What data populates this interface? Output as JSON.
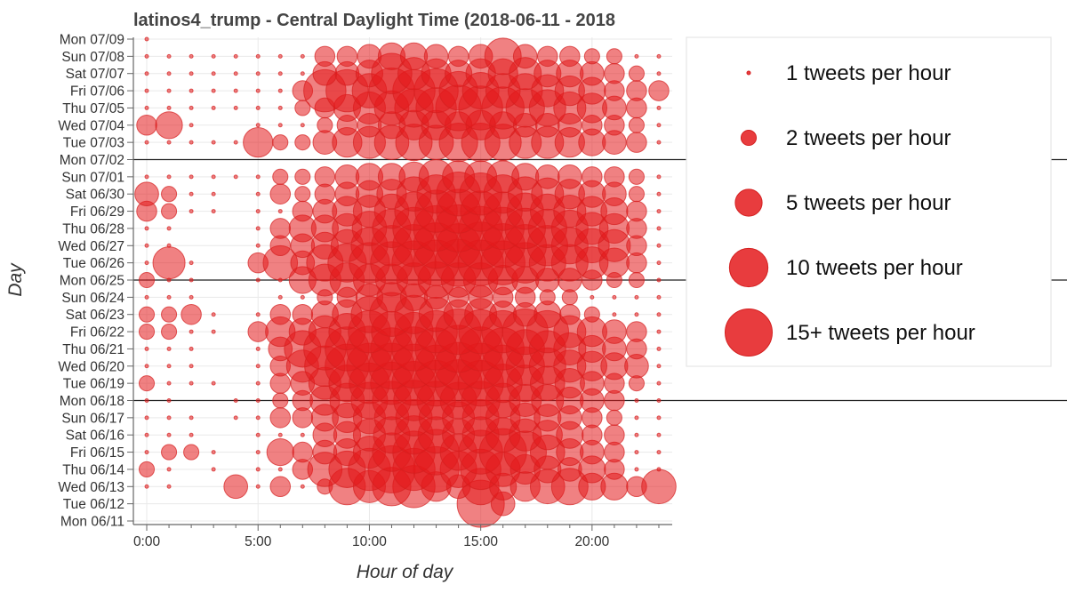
{
  "colors": {
    "dot_fill": "#e41a1c",
    "dot_stroke": "#d42020",
    "grid": "#e9e9e9",
    "week_line": "#222222",
    "axis": "#666666"
  },
  "chart_data": {
    "type": "scatter",
    "title": "latinos4_trump - Central Daylight Time (2018-06-11 - 2018",
    "xlabel": "Hour of day",
    "ylabel": "Day",
    "xlim": [
      -0.6,
      23.6
    ],
    "x_ticks": [
      0,
      5,
      10,
      15,
      20
    ],
    "x_tick_labels": [
      "0:00",
      "5:00",
      "10:00",
      "15:00",
      "20:00"
    ],
    "days": [
      "Mon 06/11",
      "Tue 06/12",
      "Wed 06/13",
      "Thu 06/14",
      "Fri 06/15",
      "Sat 06/16",
      "Sun 06/17",
      "Mon 06/18",
      "Tue 06/19",
      "Wed 06/20",
      "Thu 06/21",
      "Fri 06/22",
      "Sat 06/23",
      "Sun 06/24",
      "Mon 06/25",
      "Tue 06/26",
      "Wed 06/27",
      "Thu 06/28",
      "Fri 06/29",
      "Sat 06/30",
      "Sun 07/01",
      "Mon 07/02",
      "Tue 07/03",
      "Wed 07/04",
      "Thu 07/05",
      "Fri 07/06",
      "Sat 07/07",
      "Sun 07/08",
      "Mon 07/09"
    ],
    "week_separators": [
      "Mon 06/18",
      "Mon 06/25",
      "Mon 07/02"
    ],
    "size_unit": "tweets per hour",
    "counts": [
      [
        0,
        0,
        0,
        0,
        0,
        0,
        0,
        0,
        0,
        0,
        0,
        0,
        0,
        0,
        0,
        0,
        0,
        0,
        0,
        0,
        0,
        0,
        0,
        0
      ],
      [
        0,
        0,
        0,
        0,
        0,
        0,
        0,
        0,
        0,
        0,
        0,
        0,
        0,
        0,
        0,
        15,
        4,
        0,
        0,
        0,
        0,
        0,
        0,
        0
      ],
      [
        1,
        1,
        0,
        0,
        4,
        1,
        3,
        1,
        2,
        9,
        7,
        10,
        12,
        6,
        4,
        9,
        5,
        6,
        8,
        9,
        5,
        5,
        3,
        8
      ],
      [
        2,
        1,
        0,
        1,
        0,
        1,
        1,
        3,
        8,
        9,
        12,
        15,
        12,
        14,
        9,
        11,
        8,
        6,
        5,
        4,
        5,
        3,
        1,
        1
      ],
      [
        1,
        2,
        2,
        1,
        0,
        1,
        5,
        3,
        4,
        5,
        7,
        10,
        12,
        14,
        9,
        13,
        15,
        12,
        8,
        5,
        4,
        3,
        1,
        1
      ],
      [
        1,
        1,
        1,
        0,
        0,
        1,
        1,
        1,
        4,
        5,
        7,
        9,
        10,
        9,
        7,
        9,
        8,
        7,
        6,
        5,
        3,
        3,
        1,
        1
      ],
      [
        1,
        1,
        1,
        0,
        1,
        1,
        3,
        3,
        5,
        6,
        7,
        8,
        9,
        8,
        7,
        9,
        8,
        6,
        5,
        4,
        3,
        2,
        1,
        1
      ],
      [
        1,
        1,
        0,
        0,
        1,
        1,
        2,
        3,
        6,
        8,
        9,
        10,
        11,
        10,
        9,
        10,
        8,
        7,
        7,
        5,
        4,
        3,
        1,
        1
      ],
      [
        2,
        1,
        1,
        1,
        0,
        1,
        3,
        4,
        7,
        9,
        11,
        12,
        13,
        14,
        15,
        14,
        10,
        9,
        8,
        6,
        4,
        3,
        2,
        1
      ],
      [
        1,
        1,
        1,
        0,
        0,
        1,
        3,
        7,
        11,
        13,
        14,
        14,
        13,
        12,
        15,
        14,
        12,
        10,
        9,
        7,
        6,
        5,
        4,
        1
      ],
      [
        1,
        1,
        1,
        0,
        0,
        1,
        4,
        9,
        12,
        13,
        14,
        12,
        13,
        12,
        15,
        13,
        12,
        10,
        9,
        7,
        5,
        4,
        3,
        1
      ],
      [
        2,
        2,
        1,
        1,
        0,
        3,
        6,
        5,
        7,
        9,
        12,
        11,
        10,
        12,
        14,
        13,
        12,
        14,
        12,
        7,
        6,
        4,
        3,
        1
      ],
      [
        2,
        2,
        3,
        1,
        0,
        1,
        3,
        3,
        5,
        6,
        9,
        13,
        10,
        8,
        6,
        7,
        5,
        4,
        5,
        3,
        2,
        1,
        1,
        1
      ],
      [
        1,
        1,
        1,
        0,
        0,
        0,
        1,
        1,
        2,
        3,
        5,
        6,
        5,
        4,
        3,
        4,
        3,
        3,
        2,
        2,
        1,
        1,
        1,
        1
      ],
      [
        2,
        1,
        1,
        0,
        0,
        1,
        1,
        5,
        7,
        8,
        7,
        7,
        8,
        9,
        8,
        8,
        6,
        5,
        4,
        4,
        3,
        2,
        2,
        1
      ],
      [
        1,
        7,
        1,
        0,
        0,
        3,
        8,
        4,
        9,
        10,
        11,
        12,
        13,
        14,
        15,
        14,
        13,
        11,
        9,
        9,
        7,
        6,
        3,
        1
      ],
      [
        1,
        1,
        0,
        0,
        0,
        1,
        3,
        4,
        5,
        7,
        9,
        11,
        12,
        14,
        13,
        15,
        13,
        12,
        11,
        9,
        8,
        7,
        3,
        1
      ],
      [
        1,
        1,
        0,
        0,
        0,
        1,
        3,
        5,
        5,
        6,
        8,
        10,
        12,
        14,
        15,
        13,
        12,
        11,
        10,
        9,
        7,
        6,
        3,
        1
      ],
      [
        3,
        2,
        1,
        1,
        0,
        1,
        1,
        3,
        4,
        6,
        7,
        8,
        10,
        12,
        13,
        11,
        10,
        9,
        8,
        7,
        6,
        5,
        3,
        1
      ],
      [
        4,
        2,
        1,
        1,
        0,
        1,
        3,
        2,
        3,
        4,
        5,
        6,
        8,
        10,
        13,
        12,
        10,
        8,
        7,
        6,
        5,
        4,
        2,
        1
      ],
      [
        1,
        1,
        1,
        1,
        1,
        1,
        2,
        2,
        3,
        4,
        5,
        5,
        6,
        8,
        7,
        7,
        7,
        5,
        4,
        4,
        3,
        3,
        2,
        1
      ],
      [
        0,
        0,
        0,
        0,
        0,
        0,
        0,
        0,
        0,
        0,
        0,
        0,
        0,
        0,
        0,
        0,
        0,
        0,
        0,
        0,
        0,
        0,
        0,
        0
      ],
      [
        1,
        1,
        1,
        1,
        1,
        6,
        2,
        2,
        4,
        6,
        7,
        8,
        9,
        8,
        10,
        10,
        9,
        7,
        7,
        6,
        5,
        4,
        3,
        1
      ],
      [
        3,
        5,
        1,
        0,
        0,
        1,
        1,
        1,
        2,
        3,
        4,
        5,
        6,
        6,
        5,
        6,
        5,
        4,
        4,
        4,
        3,
        3,
        2,
        1
      ],
      [
        1,
        1,
        1,
        1,
        1,
        1,
        1,
        2,
        3,
        5,
        7,
        8,
        10,
        11,
        14,
        13,
        12,
        10,
        9,
        7,
        6,
        4,
        3,
        1
      ],
      [
        1,
        1,
        1,
        1,
        1,
        1,
        1,
        3,
        12,
        12,
        8,
        14,
        12,
        13,
        10,
        9,
        8,
        8,
        7,
        6,
        5,
        3,
        3,
        3
      ],
      [
        1,
        1,
        1,
        1,
        1,
        1,
        1,
        1,
        4,
        4,
        5,
        11,
        7,
        6,
        5,
        6,
        6,
        7,
        5,
        5,
        4,
        3,
        2,
        1
      ],
      [
        1,
        1,
        1,
        1,
        1,
        1,
        1,
        1,
        3,
        3,
        4,
        5,
        5,
        4,
        3,
        4,
        9,
        4,
        3,
        3,
        2,
        2,
        1,
        1
      ],
      [
        1,
        0,
        0,
        0,
        0,
        0,
        0,
        0,
        0,
        0,
        0,
        0,
        0,
        0,
        0,
        0,
        0,
        0,
        0,
        0,
        0,
        0,
        0,
        0
      ]
    ],
    "legend": [
      {
        "value": 1,
        "label": "1 tweets per hour"
      },
      {
        "value": 2,
        "label": "2 tweets per hour"
      },
      {
        "value": 5,
        "label": "5 tweets per hour"
      },
      {
        "value": 10,
        "label": "10 tweets per hour"
      },
      {
        "value": 15,
        "label": "15+ tweets per hour"
      }
    ]
  }
}
